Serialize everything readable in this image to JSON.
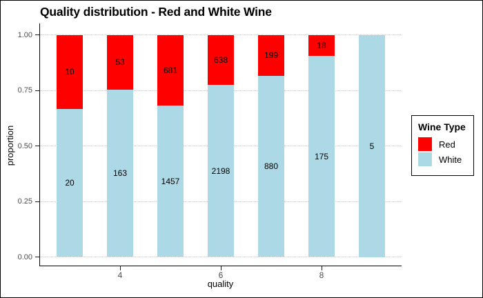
{
  "title": "Quality distribution - Red and White Wine",
  "colors": {
    "red_series": "#FF0000",
    "white_series": "#ADD8E6",
    "axis_text": "#4d4d4d",
    "gridline": "#c3c3c3",
    "label_text": "#000000"
  },
  "chart_data": {
    "type": "bar",
    "stacked": true,
    "normalized_to_proportion": true,
    "title": "Quality distribution - Red and White Wine",
    "xlabel": "quality",
    "ylabel": "proportion",
    "categories": [
      3,
      4,
      5,
      6,
      7,
      8,
      9
    ],
    "series": [
      {
        "name": "Red",
        "color": "#FF0000",
        "values": [
          10,
          53,
          681,
          638,
          199,
          18,
          0
        ]
      },
      {
        "name": "White",
        "color": "#ADD8E6",
        "values": [
          20,
          163,
          1457,
          2198,
          880,
          175,
          5
        ]
      }
    ],
    "white_proportions": [
      0.6667,
      0.7546,
      0.6815,
      0.775,
      0.8156,
      0.9067,
      1.0
    ],
    "x_tick_labels": [
      "4",
      "6",
      "8"
    ],
    "x_tick_values": [
      4,
      6,
      8
    ],
    "y_tick_labels": [
      "0.00",
      "0.25",
      "0.50",
      "0.75",
      "1.00"
    ],
    "y_tick_values": [
      0,
      0.25,
      0.5,
      0.75,
      1
    ],
    "ylim": [
      0,
      1
    ],
    "grid": "horizontal-dotted",
    "legend_title": "Wine Type",
    "legend_position": "right"
  },
  "legend": {
    "title": "Wine Type",
    "items": [
      {
        "label": "Red"
      },
      {
        "label": "White"
      }
    ]
  }
}
